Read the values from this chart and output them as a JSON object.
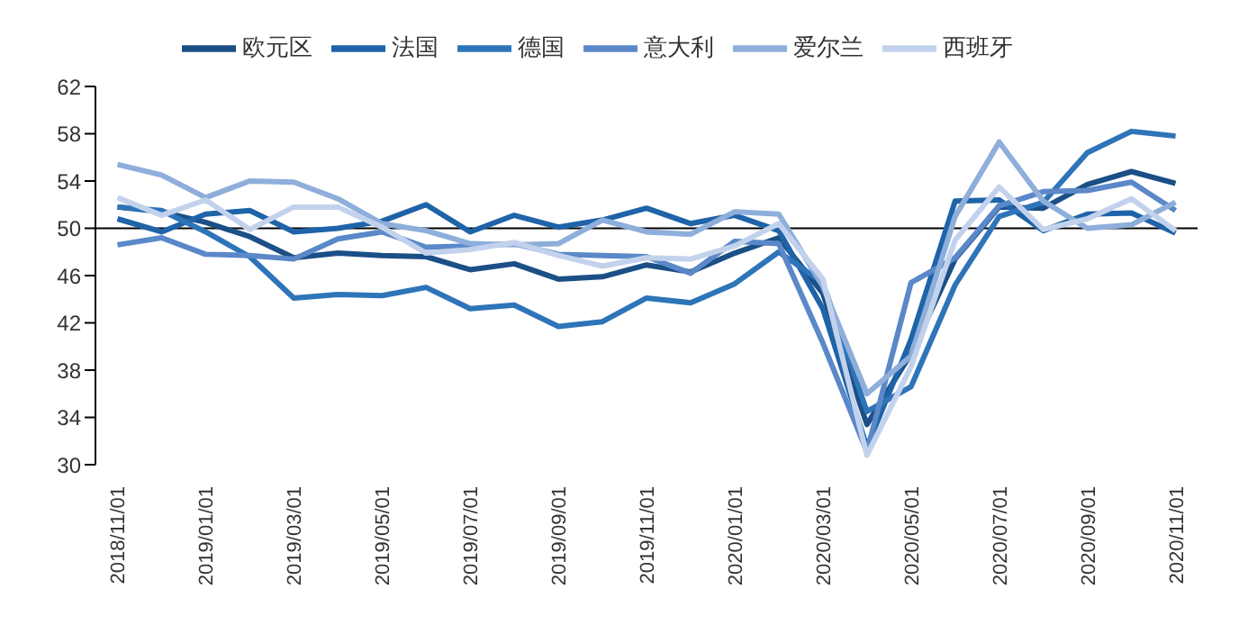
{
  "chart_data": {
    "type": "line",
    "categories": [
      "2018/11/01",
      null,
      "2019/01/01",
      null,
      "2019/03/01",
      null,
      "2019/05/01",
      null,
      "2019/07/01",
      null,
      "2019/09/01",
      null,
      "2019/11/01",
      null,
      "2020/01/01",
      null,
      "2020/03/01",
      null,
      "2020/05/01",
      null,
      "2020/07/01",
      null,
      "2020/09/01",
      null,
      "2020/11/01"
    ],
    "series": [
      {
        "name": "欧元区",
        "color": "#1b4f86",
        "values": [
          51.8,
          51.4,
          50.5,
          49.3,
          47.5,
          47.9,
          47.7,
          47.6,
          46.5,
          47.0,
          45.7,
          45.9,
          46.9,
          46.3,
          47.9,
          49.2,
          44.5,
          33.4,
          39.4,
          47.4,
          51.8,
          51.7,
          53.7,
          54.8,
          53.8
        ]
      },
      {
        "name": "法国",
        "color": "#1f63a8",
        "values": [
          50.8,
          49.7,
          51.2,
          51.5,
          49.7,
          50.0,
          50.6,
          52.0,
          49.7,
          51.1,
          50.1,
          50.7,
          51.7,
          50.4,
          51.1,
          49.8,
          43.2,
          31.5,
          40.6,
          52.3,
          52.4,
          49.8,
          51.2,
          51.3,
          49.6
        ]
      },
      {
        "name": "德国",
        "color": "#2e74b8",
        "values": [
          51.8,
          51.5,
          49.7,
          47.6,
          44.1,
          44.4,
          44.3,
          45.0,
          43.2,
          43.5,
          41.7,
          42.1,
          44.1,
          43.7,
          45.3,
          48.0,
          45.4,
          34.5,
          36.6,
          45.2,
          51.0,
          52.2,
          56.4,
          58.2,
          57.8
        ]
      },
      {
        "name": "意大利",
        "color": "#5a88c8",
        "values": [
          48.6,
          49.2,
          47.8,
          47.7,
          47.4,
          49.1,
          49.7,
          48.4,
          48.5,
          48.7,
          47.8,
          47.7,
          47.6,
          46.2,
          48.9,
          48.7,
          40.3,
          31.1,
          45.4,
          47.5,
          51.9,
          53.1,
          53.2,
          53.9,
          51.5
        ]
      },
      {
        "name": "爱尔兰",
        "color": "#8eaedb",
        "values": [
          55.4,
          54.5,
          52.6,
          54.0,
          53.9,
          52.5,
          50.4,
          49.8,
          48.7,
          48.6,
          48.7,
          50.7,
          49.7,
          49.5,
          51.4,
          51.2,
          45.1,
          36.0,
          39.2,
          51.0,
          57.3,
          52.3,
          50.0,
          50.3,
          52.2
        ]
      },
      {
        "name": "西班牙",
        "color": "#c3d2ec",
        "values": [
          52.6,
          51.1,
          52.4,
          49.9,
          51.8,
          51.8,
          50.1,
          47.9,
          48.2,
          48.8,
          47.7,
          46.8,
          47.5,
          47.4,
          48.5,
          50.4,
          45.7,
          30.8,
          38.3,
          49.0,
          53.5,
          49.9,
          50.8,
          52.5,
          49.8
        ]
      }
    ],
    "ylim": [
      30,
      62
    ],
    "yticks": [
      30,
      34,
      38,
      42,
      46,
      50,
      54,
      58,
      62
    ],
    "ref_lines": [
      {
        "axis": "y",
        "value": 50,
        "color": "#000000"
      }
    ],
    "legend": "top",
    "marker": "none",
    "line_style": "solid"
  }
}
